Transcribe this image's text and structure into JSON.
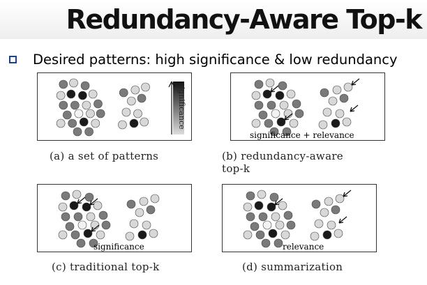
{
  "slide": {
    "title": "Redundancy-Aware Top-k",
    "bullet": "Desired patterns: high significance & low redundancy"
  },
  "panels": [
    {
      "caption": "(a) a set of patterns",
      "caption_cont": "",
      "inner_label": "",
      "legend_label": "significance"
    },
    {
      "caption": "(b)   redundancy-aware",
      "caption_cont": "top-k",
      "inner_label": "significance + relevance",
      "legend_label": ""
    },
    {
      "caption": "(c) traditional top-k",
      "caption_cont": "",
      "inner_label": "significance",
      "legend_label": ""
    },
    {
      "caption": "(d) summarization",
      "caption_cont": "",
      "inner_label": "relevance",
      "legend_label": ""
    }
  ],
  "colors": {
    "bullet_border": "#1f3f8f",
    "circle_dark": "#1a1a1a",
    "circle_mid": "#7a7a7a",
    "circle_light": "#d8d8d8",
    "circle_pale": "#f2f2f2"
  }
}
